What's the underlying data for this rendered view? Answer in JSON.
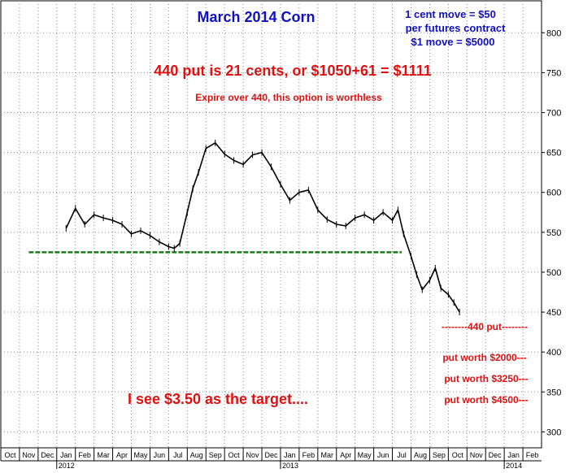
{
  "chart_data": {
    "type": "line",
    "title": "March 2014 Corn",
    "ylim": [
      280,
      840
    ],
    "y_ticks": [
      300,
      350,
      400,
      450,
      500,
      550,
      600,
      650,
      700,
      750,
      800
    ],
    "y_tick_labels": [
      "300",
      "350",
      "400",
      "450",
      "500",
      "550",
      "600",
      "650",
      "700",
      "750",
      "800"
    ],
    "x_months": [
      "Oct",
      "Nov",
      "Dec",
      "Jan",
      "Feb",
      "Mar",
      "Apr",
      "May",
      "Jun",
      "Jul",
      "Aug",
      "Sep",
      "Oct",
      "Nov",
      "Dec",
      "Jan",
      "Feb",
      "Mar",
      "Apr",
      "May",
      "Jun",
      "Jul",
      "Aug",
      "Sep",
      "Oct",
      "Nov",
      "Dec",
      "Jan",
      "Feb"
    ],
    "x_years": [
      {
        "label": "2012",
        "month_index": 3
      },
      {
        "label": "2013",
        "month_index": 15
      },
      {
        "label": "2014",
        "month_index": 27
      }
    ],
    "series": [
      {
        "x": [
          3.5,
          4.0,
          4.5,
          5.0,
          5.5,
          6.0,
          6.5,
          7.0,
          7.5,
          8.0,
          8.5,
          9.0,
          9.3,
          9.6,
          10.0,
          10.3,
          10.6,
          11.0,
          11.5,
          12.0,
          12.5,
          13.0,
          13.5,
          14.0,
          14.5,
          15.0,
          15.5,
          16.0,
          16.5,
          17.0,
          17.5,
          18.0,
          18.5,
          19.0,
          19.5,
          20.0,
          20.5,
          21.0,
          21.3,
          21.6,
          22.0,
          22.3,
          22.6,
          23.0,
          23.3,
          23.6,
          24.0,
          24.3,
          24.6
        ],
        "y": [
          555,
          580,
          560,
          572,
          568,
          565,
          560,
          548,
          552,
          546,
          538,
          532,
          530,
          536,
          575,
          605,
          625,
          655,
          662,
          648,
          640,
          635,
          647,
          650,
          632,
          610,
          590,
          600,
          603,
          578,
          566,
          560,
          558,
          568,
          572,
          565,
          575,
          565,
          578,
          548,
          520,
          497,
          478,
          490,
          505,
          480,
          472,
          462,
          450
        ]
      }
    ],
    "support_line": {
      "value": 525,
      "x_from": 1.5,
      "x_to": 21.5,
      "color": "#1a7a1a"
    },
    "annotations": {
      "contract_note": [
        "1 cent move = $50",
        "per futures contract",
        "$1 move = $5000"
      ],
      "put_price": "440 put is 21 cents, or $1050+61 = $1111",
      "expire_note": "Expire over 440, this option is worthless",
      "target_note": "I see $3.50 as the target....",
      "put_440": "--------440 put--------",
      "put_400": "put worth $2000---",
      "put_375": "put worth $3250---",
      "put_350": "put worth $4500---"
    },
    "colors": {
      "title": "#1010c0",
      "note_blue": "#1010c0",
      "annotation_red": "#e01010",
      "price": "#000000",
      "grid": "#888888"
    }
  }
}
